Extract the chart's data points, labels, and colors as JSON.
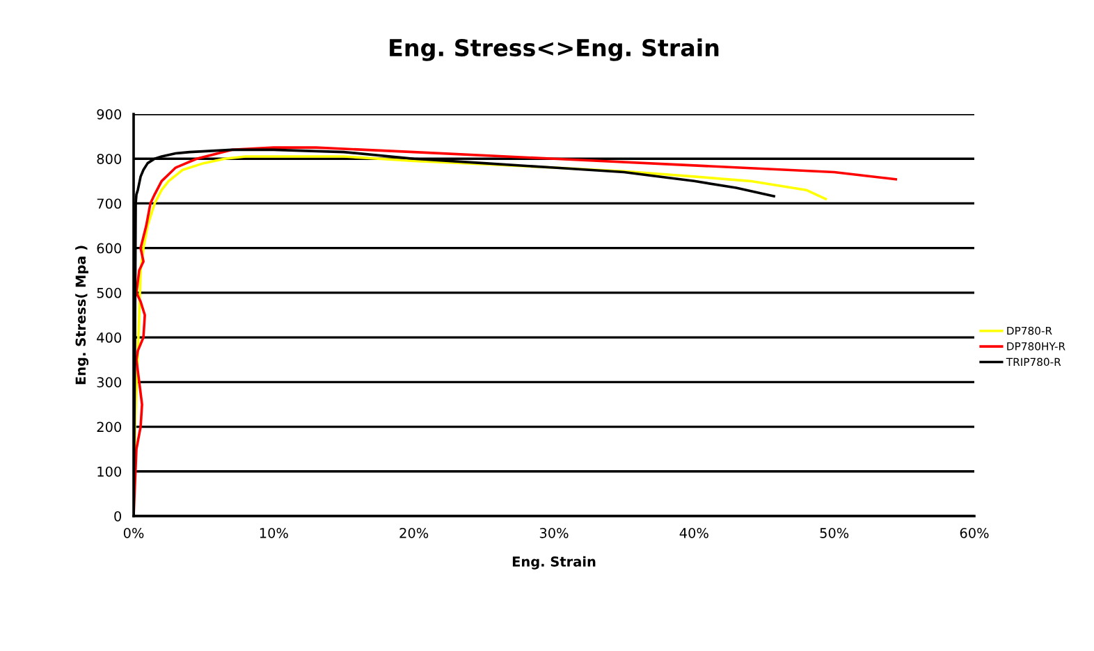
{
  "chart_data": {
    "type": "line",
    "title": "Eng. Stress<>Eng. Strain",
    "xlabel": "Eng. Strain",
    "ylabel": "Eng. Stress( Mpa )",
    "xlim": [
      0,
      0.6
    ],
    "xticks": [
      {
        "value": 0,
        "label": "0%"
      },
      {
        "value": 0.1,
        "label": "10%"
      },
      {
        "value": 0.2,
        "label": "20%"
      },
      {
        "value": 0.3,
        "label": "30%"
      },
      {
        "value": 0.4,
        "label": "40%"
      },
      {
        "value": 0.5,
        "label": "50%"
      },
      {
        "value": 0.6,
        "label": "60%"
      }
    ],
    "ylim": [
      0,
      900
    ],
    "yticks": [
      0,
      100,
      200,
      300,
      400,
      500,
      600,
      700,
      800,
      900
    ],
    "grid": "y",
    "legend": "right",
    "marker": "none",
    "line_style": "solid",
    "series": [
      {
        "name": "DP780-R",
        "color": "#ffff00",
        "x": [
          0,
          0.001,
          0.004,
          0.005,
          0.007,
          0.01,
          0.015,
          0.02,
          0.025,
          0.035,
          0.05,
          0.065,
          0.08,
          0.1,
          0.15,
          0.2,
          0.25,
          0.3,
          0.35,
          0.4,
          0.44,
          0.46,
          0.48,
          0.494
        ],
        "values": [
          0,
          200,
          450,
          550,
          600,
          650,
          700,
          730,
          750,
          775,
          790,
          800,
          805,
          805,
          805,
          795,
          788,
          780,
          772,
          760,
          750,
          740,
          730,
          710
        ]
      },
      {
        "name": "DP780HY-R",
        "color": "#ff0000",
        "x": [
          0,
          0.002,
          0.005,
          0.006,
          0.004,
          0.002,
          0.003,
          0.007,
          0.008,
          0.005,
          0.002,
          0.004,
          0.007,
          0.005,
          0.009,
          0.012,
          0.015,
          0.02,
          0.025,
          0.03,
          0.045,
          0.07,
          0.1,
          0.13,
          0.2,
          0.3,
          0.4,
          0.5,
          0.544
        ],
        "values": [
          0,
          150,
          200,
          250,
          300,
          350,
          370,
          400,
          450,
          480,
          500,
          550,
          570,
          600,
          650,
          700,
          720,
          750,
          765,
          780,
          800,
          820,
          825,
          825,
          815,
          800,
          785,
          770,
          754
        ]
      },
      {
        "name": "TRIP780-R",
        "color": "#000000",
        "x": [
          0,
          0.001,
          0.0015,
          0.002,
          0.003,
          0.005,
          0.007,
          0.01,
          0.015,
          0.02,
          0.03,
          0.04,
          0.07,
          0.1,
          0.15,
          0.2,
          0.25,
          0.3,
          0.35,
          0.4,
          0.43,
          0.457
        ],
        "values": [
          0,
          400,
          700,
          720,
          730,
          760,
          775,
          790,
          800,
          805,
          812,
          815,
          820,
          820,
          815,
          800,
          790,
          780,
          770,
          750,
          735,
          716
        ]
      }
    ]
  }
}
